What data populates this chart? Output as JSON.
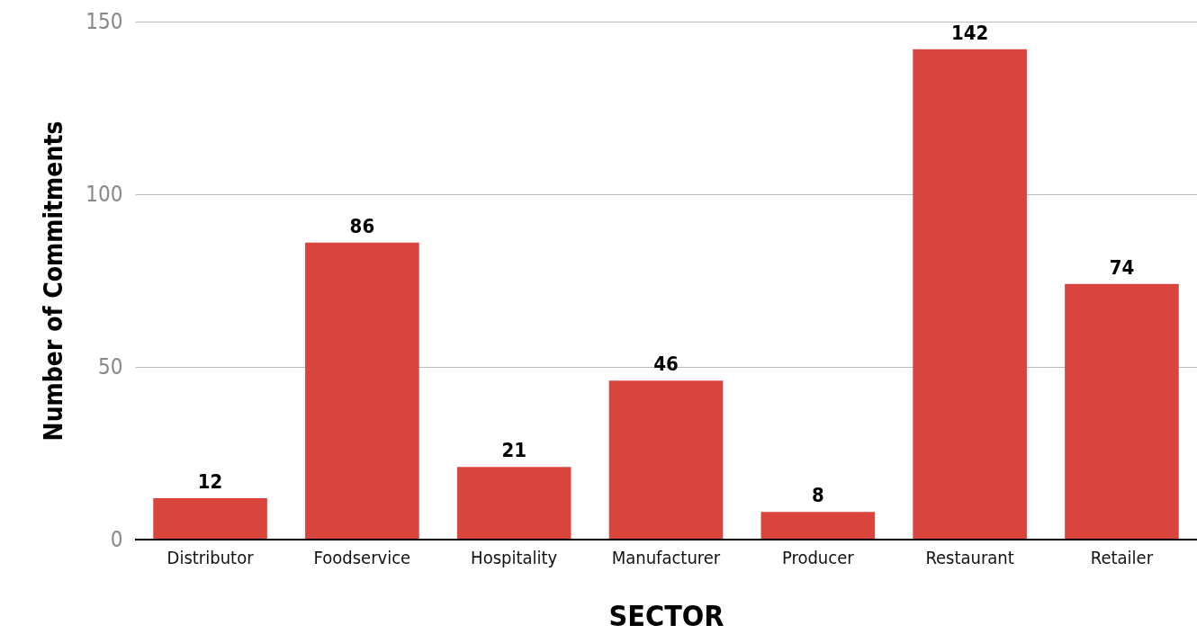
{
  "chart_data": {
    "type": "bar",
    "xlabel": "SECTOR",
    "ylabel": "Number of Commitments",
    "categories": [
      "Distributor",
      "Foodservice",
      "Hospitality",
      "Manufacturer",
      "Producer",
      "Restaurant",
      "Retailer"
    ],
    "values": [
      12,
      86,
      21,
      46,
      8,
      142,
      74
    ],
    "color": "#d9453d",
    "ylim": [
      0,
      150
    ],
    "yticks": [
      0,
      50,
      100,
      150
    ],
    "grid": "y",
    "data_labels": true
  }
}
